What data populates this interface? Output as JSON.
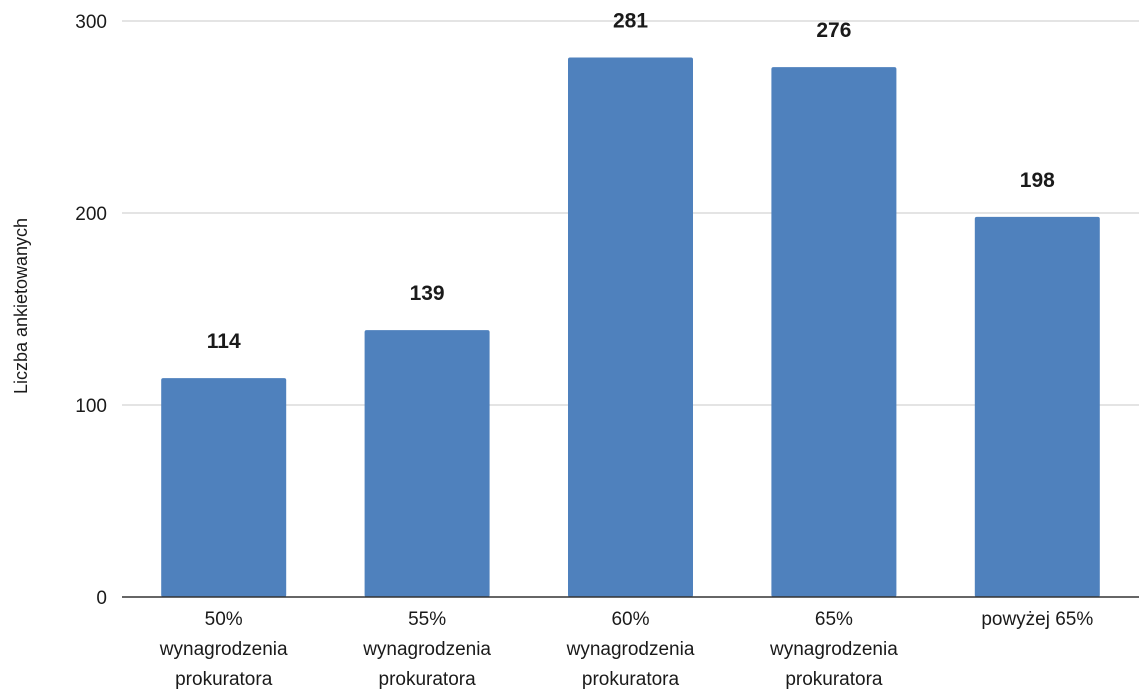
{
  "chart_data": {
    "type": "bar",
    "title": "",
    "xlabel": "",
    "ylabel": "Liczba ankietowanych",
    "categories": [
      [
        "50%",
        "wynagrodzenia",
        "prokuratora"
      ],
      [
        "55%",
        "wynagrodzenia",
        "prokuratora"
      ],
      [
        "60%",
        "wynagrodzenia",
        "prokuratora"
      ],
      [
        "65%",
        "wynagrodzenia",
        "prokuratora"
      ],
      [
        "powyżej 65%"
      ]
    ],
    "values": [
      114,
      139,
      281,
      276,
      198
    ],
    "ylim": [
      0,
      300
    ],
    "yticks": [
      0,
      100,
      200,
      300
    ],
    "grid": true,
    "legend": "none",
    "colors": {
      "bar": "#4f81bd"
    }
  }
}
